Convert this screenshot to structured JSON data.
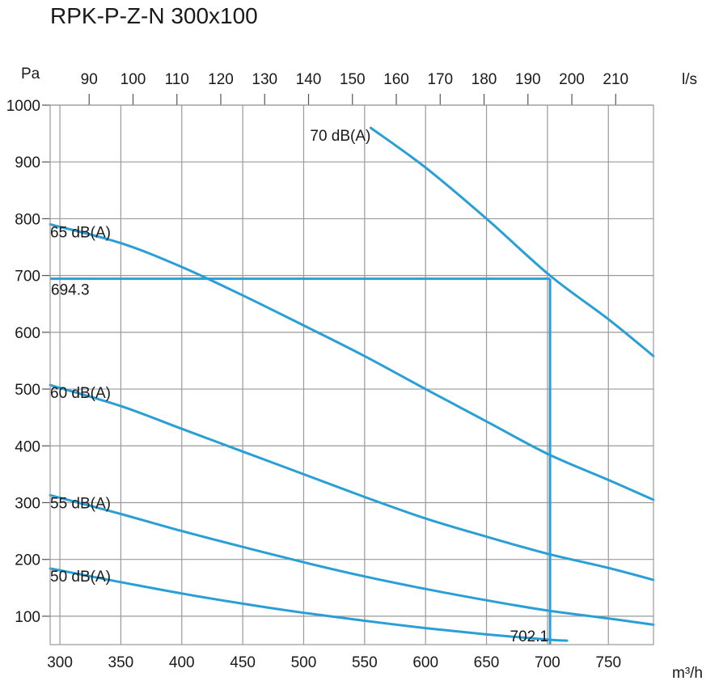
{
  "chart_data": {
    "type": "line",
    "title": "RPK-P-Z-N 300x100",
    "ylabel": "Pa",
    "xlabel": "m³/h",
    "x2label": "l/s",
    "xlim": [
      292,
      787
    ],
    "ylim": [
      50,
      1000
    ],
    "x_ticks": [
      300,
      350,
      400,
      450,
      500,
      550,
      600,
      650,
      700,
      750
    ],
    "y_ticks": [
      100,
      200,
      300,
      400,
      500,
      600,
      700,
      800,
      900,
      1000
    ],
    "x2_ticks": [
      90,
      100,
      110,
      120,
      130,
      140,
      150,
      160,
      170,
      180,
      190,
      200,
      210
    ],
    "line_color": "#2a9fd6",
    "grid_color": "#9a9a9a",
    "series": [
      {
        "name": "70 dB(A)",
        "points": [
          [
            555,
            960
          ],
          [
            600,
            890
          ],
          [
            650,
            800
          ],
          [
            702,
            700
          ],
          [
            750,
            623
          ],
          [
            787,
            558
          ]
        ]
      },
      {
        "name": "65 dB(A)",
        "points": [
          [
            292,
            790
          ],
          [
            350,
            757
          ],
          [
            400,
            715
          ],
          [
            450,
            665
          ],
          [
            500,
            612
          ],
          [
            550,
            558
          ],
          [
            600,
            500
          ],
          [
            650,
            443
          ],
          [
            700,
            386
          ],
          [
            750,
            340
          ],
          [
            787,
            305
          ]
        ]
      },
      {
        "name": "60 dB(A)",
        "points": [
          [
            292,
            507
          ],
          [
            350,
            470
          ],
          [
            400,
            430
          ],
          [
            450,
            390
          ],
          [
            500,
            350
          ],
          [
            550,
            310
          ],
          [
            600,
            272
          ],
          [
            650,
            240
          ],
          [
            700,
            210
          ],
          [
            750,
            185
          ],
          [
            787,
            164
          ]
        ]
      },
      {
        "name": "55 dB(A)",
        "points": [
          [
            292,
            313
          ],
          [
            350,
            280
          ],
          [
            400,
            250
          ],
          [
            450,
            222
          ],
          [
            500,
            195
          ],
          [
            550,
            170
          ],
          [
            600,
            148
          ],
          [
            650,
            128
          ],
          [
            700,
            110
          ],
          [
            750,
            96
          ],
          [
            787,
            85
          ]
        ]
      },
      {
        "name": "50 dB(A)",
        "points": [
          [
            292,
            184
          ],
          [
            350,
            160
          ],
          [
            400,
            140
          ],
          [
            450,
            122
          ],
          [
            500,
            106
          ],
          [
            550,
            92
          ],
          [
            600,
            79
          ],
          [
            650,
            68
          ],
          [
            700,
            59
          ],
          [
            716,
            57
          ]
        ]
      }
    ],
    "operating_point": {
      "flow": 702.1,
      "pressure": 694.3,
      "flow_label": "702.1",
      "pressure_label": "694.3"
    }
  }
}
